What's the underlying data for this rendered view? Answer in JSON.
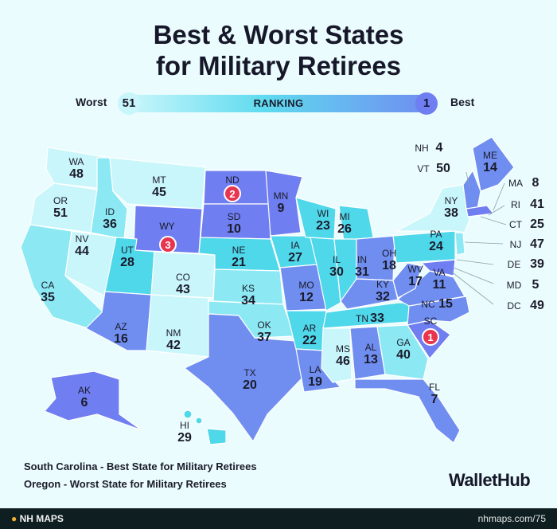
{
  "title_line1": "Best & Worst States",
  "title_line2": "for Military Retirees",
  "legend": {
    "worst_label": "Worst",
    "worst_value": "51",
    "middle_label": "RANKING",
    "best_value": "1",
    "best_label": "Best"
  },
  "notes": {
    "best": "South Carolina - Best State for Military Retirees",
    "worst": "Oregon - Worst State for Military Retirees"
  },
  "brand": "WalletHub",
  "footer": {
    "left": "NH MAPS",
    "right": "nhmaps.com/75"
  },
  "colors": {
    "lightest": "#c9f6fb",
    "light": "#8ce9f4",
    "mid": "#4fd7ea",
    "blue": "#6f8ef0",
    "dark": "#5b6fe6",
    "badge": "#e8354e"
  },
  "states": [
    {
      "abbr": "WA",
      "rank": "48"
    },
    {
      "abbr": "OR",
      "rank": "51"
    },
    {
      "abbr": "CA",
      "rank": "35"
    },
    {
      "abbr": "ID",
      "rank": "36"
    },
    {
      "abbr": "NV",
      "rank": "44"
    },
    {
      "abbr": "MT",
      "rank": "45"
    },
    {
      "abbr": "WY",
      "rank": "3"
    },
    {
      "abbr": "UT",
      "rank": "28"
    },
    {
      "abbr": "AZ",
      "rank": "16"
    },
    {
      "abbr": "CO",
      "rank": "43"
    },
    {
      "abbr": "NM",
      "rank": "42"
    },
    {
      "abbr": "ND",
      "rank": "2"
    },
    {
      "abbr": "SD",
      "rank": "10"
    },
    {
      "abbr": "NE",
      "rank": "21"
    },
    {
      "abbr": "KS",
      "rank": "34"
    },
    {
      "abbr": "OK",
      "rank": "37"
    },
    {
      "abbr": "TX",
      "rank": "20"
    },
    {
      "abbr": "MN",
      "rank": "9"
    },
    {
      "abbr": "IA",
      "rank": "27"
    },
    {
      "abbr": "MO",
      "rank": "12"
    },
    {
      "abbr": "AR",
      "rank": "22"
    },
    {
      "abbr": "LA",
      "rank": "19"
    },
    {
      "abbr": "WI",
      "rank": "23"
    },
    {
      "abbr": "IL",
      "rank": "30"
    },
    {
      "abbr": "MI",
      "rank": "26"
    },
    {
      "abbr": "IN",
      "rank": "31"
    },
    {
      "abbr": "OH",
      "rank": "18"
    },
    {
      "abbr": "KY",
      "rank": "32"
    },
    {
      "abbr": "TN",
      "rank": "33"
    },
    {
      "abbr": "MS",
      "rank": "46"
    },
    {
      "abbr": "AL",
      "rank": "13"
    },
    {
      "abbr": "GA",
      "rank": "40"
    },
    {
      "abbr": "FL",
      "rank": "7"
    },
    {
      "abbr": "SC",
      "rank": "1"
    },
    {
      "abbr": "NC",
      "rank": "15"
    },
    {
      "abbr": "VA",
      "rank": "11"
    },
    {
      "abbr": "WV",
      "rank": "17"
    },
    {
      "abbr": "PA",
      "rank": "24"
    },
    {
      "abbr": "NY",
      "rank": "38"
    },
    {
      "abbr": "ME",
      "rank": "14"
    },
    {
      "abbr": "AK",
      "rank": "6"
    },
    {
      "abbr": "HI",
      "rank": "29"
    },
    {
      "abbr": "NH",
      "rank": "4"
    },
    {
      "abbr": "VT",
      "rank": "50"
    },
    {
      "abbr": "MA",
      "rank": "8"
    },
    {
      "abbr": "RI",
      "rank": "41"
    },
    {
      "abbr": "CT",
      "rank": "25"
    },
    {
      "abbr": "NJ",
      "rank": "47"
    },
    {
      "abbr": "DE",
      "rank": "39"
    },
    {
      "abbr": "MD",
      "rank": "5"
    },
    {
      "abbr": "DC",
      "rank": "49"
    }
  ]
}
